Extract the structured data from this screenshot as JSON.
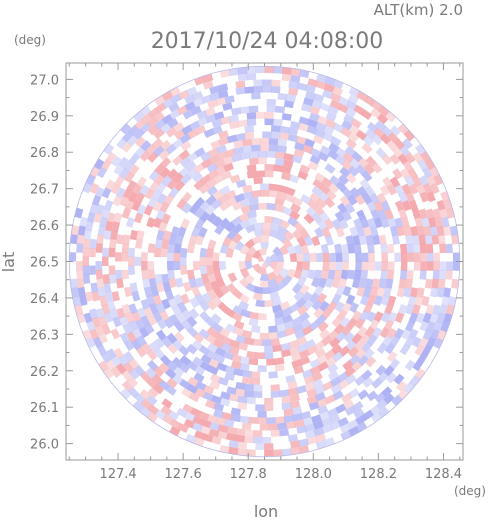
{
  "header": {
    "altitude_label": "ALT(km)  2.0",
    "timestamp": "2017/10/24  04:08:00"
  },
  "chart_data": {
    "type": "heatmap",
    "title": "2017/10/24  04:08:00",
    "xlabel": "lon",
    "ylabel": "lat",
    "x_unit": "(deg)",
    "y_unit": "(deg)",
    "xlim": [
      127.24,
      128.46
    ],
    "ylim": [
      25.955,
      27.045
    ],
    "x_ticks": [
      127.4,
      127.6,
      127.8,
      128.0,
      128.2,
      128.4
    ],
    "x_tick_labels": [
      "127.4",
      "127.6",
      "127.8",
      "128.0",
      "128.2",
      "128.4"
    ],
    "y_ticks": [
      26.0,
      26.1,
      26.2,
      26.3,
      26.4,
      26.5,
      26.6,
      26.7,
      26.8,
      26.9,
      27.0
    ],
    "y_tick_labels": [
      "26.0",
      "26.1",
      "26.2",
      "26.3",
      "26.4",
      "26.5",
      "26.6",
      "26.7",
      "26.8",
      "26.9",
      "27.0"
    ],
    "radar_center": {
      "lon": 127.85,
      "lat": 26.5
    },
    "radar_radius_lon_deg": 0.6,
    "grid": false,
    "colors": {
      "positive": "#f3a1a6",
      "negative": "#a6abf3",
      "neutral": "#ffffff",
      "axis": "#9a9a9a",
      "text": "#7a7a7a"
    }
  }
}
